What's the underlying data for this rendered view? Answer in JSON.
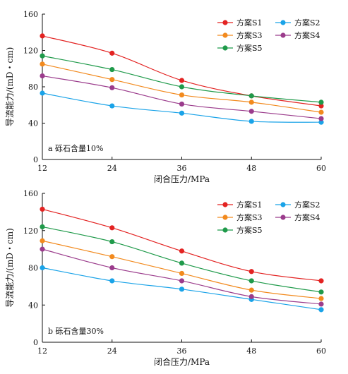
{
  "chart_data": [
    {
      "type": "line",
      "subplot_label": "a 砾石含量10%",
      "xlabel": "闭合压力/MPa",
      "ylabel": "导流能力/(mD・cm)",
      "x": [
        12,
        24,
        36,
        48,
        60
      ],
      "xlim": [
        12,
        60
      ],
      "ylim": [
        0,
        160
      ],
      "xticks": [
        12,
        24,
        36,
        48,
        60
      ],
      "yticks": [
        0,
        40,
        80,
        120,
        160
      ],
      "grid": false,
      "legend_position": "top-right",
      "series": [
        {
          "name": "方案S1",
          "color": "#e32322",
          "values": [
            136,
            117,
            87,
            70,
            59
          ]
        },
        {
          "name": "方案S2",
          "color": "#1aa3e8",
          "values": [
            73,
            59,
            51,
            42,
            41
          ]
        },
        {
          "name": "方案S3",
          "color": "#f28a1e",
          "values": [
            105,
            88,
            71,
            63,
            52
          ]
        },
        {
          "name": "方案S4",
          "color": "#9b3c8c",
          "values": [
            92,
            79,
            61,
            53,
            45
          ]
        },
        {
          "name": "方案S5",
          "color": "#1f9a4a",
          "values": [
            114,
            99,
            80,
            70,
            63
          ]
        }
      ]
    },
    {
      "type": "line",
      "subplot_label": "b 砾石含量30%",
      "xlabel": "闭合压力/MPa",
      "ylabel": "导流能力/(mD・cm)",
      "x": [
        12,
        24,
        36,
        48,
        60
      ],
      "xlim": [
        12,
        60
      ],
      "ylim": [
        0,
        160
      ],
      "xticks": [
        12,
        24,
        36,
        48,
        60
      ],
      "yticks": [
        0,
        40,
        80,
        120,
        160
      ],
      "grid": false,
      "legend_position": "top-right",
      "series": [
        {
          "name": "方案S1",
          "color": "#e32322",
          "values": [
            143,
            123,
            98,
            76,
            66
          ]
        },
        {
          "name": "方案S2",
          "color": "#1aa3e8",
          "values": [
            80,
            66,
            57,
            46,
            35
          ]
        },
        {
          "name": "方案S3",
          "color": "#f28a1e",
          "values": [
            109,
            92,
            74,
            56,
            47
          ]
        },
        {
          "name": "方案S4",
          "color": "#9b3c8c",
          "values": [
            100,
            80,
            66,
            49,
            41
          ]
        },
        {
          "name": "方案S5",
          "color": "#1f9a4a",
          "values": [
            124,
            108,
            85,
            66,
            54
          ]
        }
      ]
    }
  ]
}
